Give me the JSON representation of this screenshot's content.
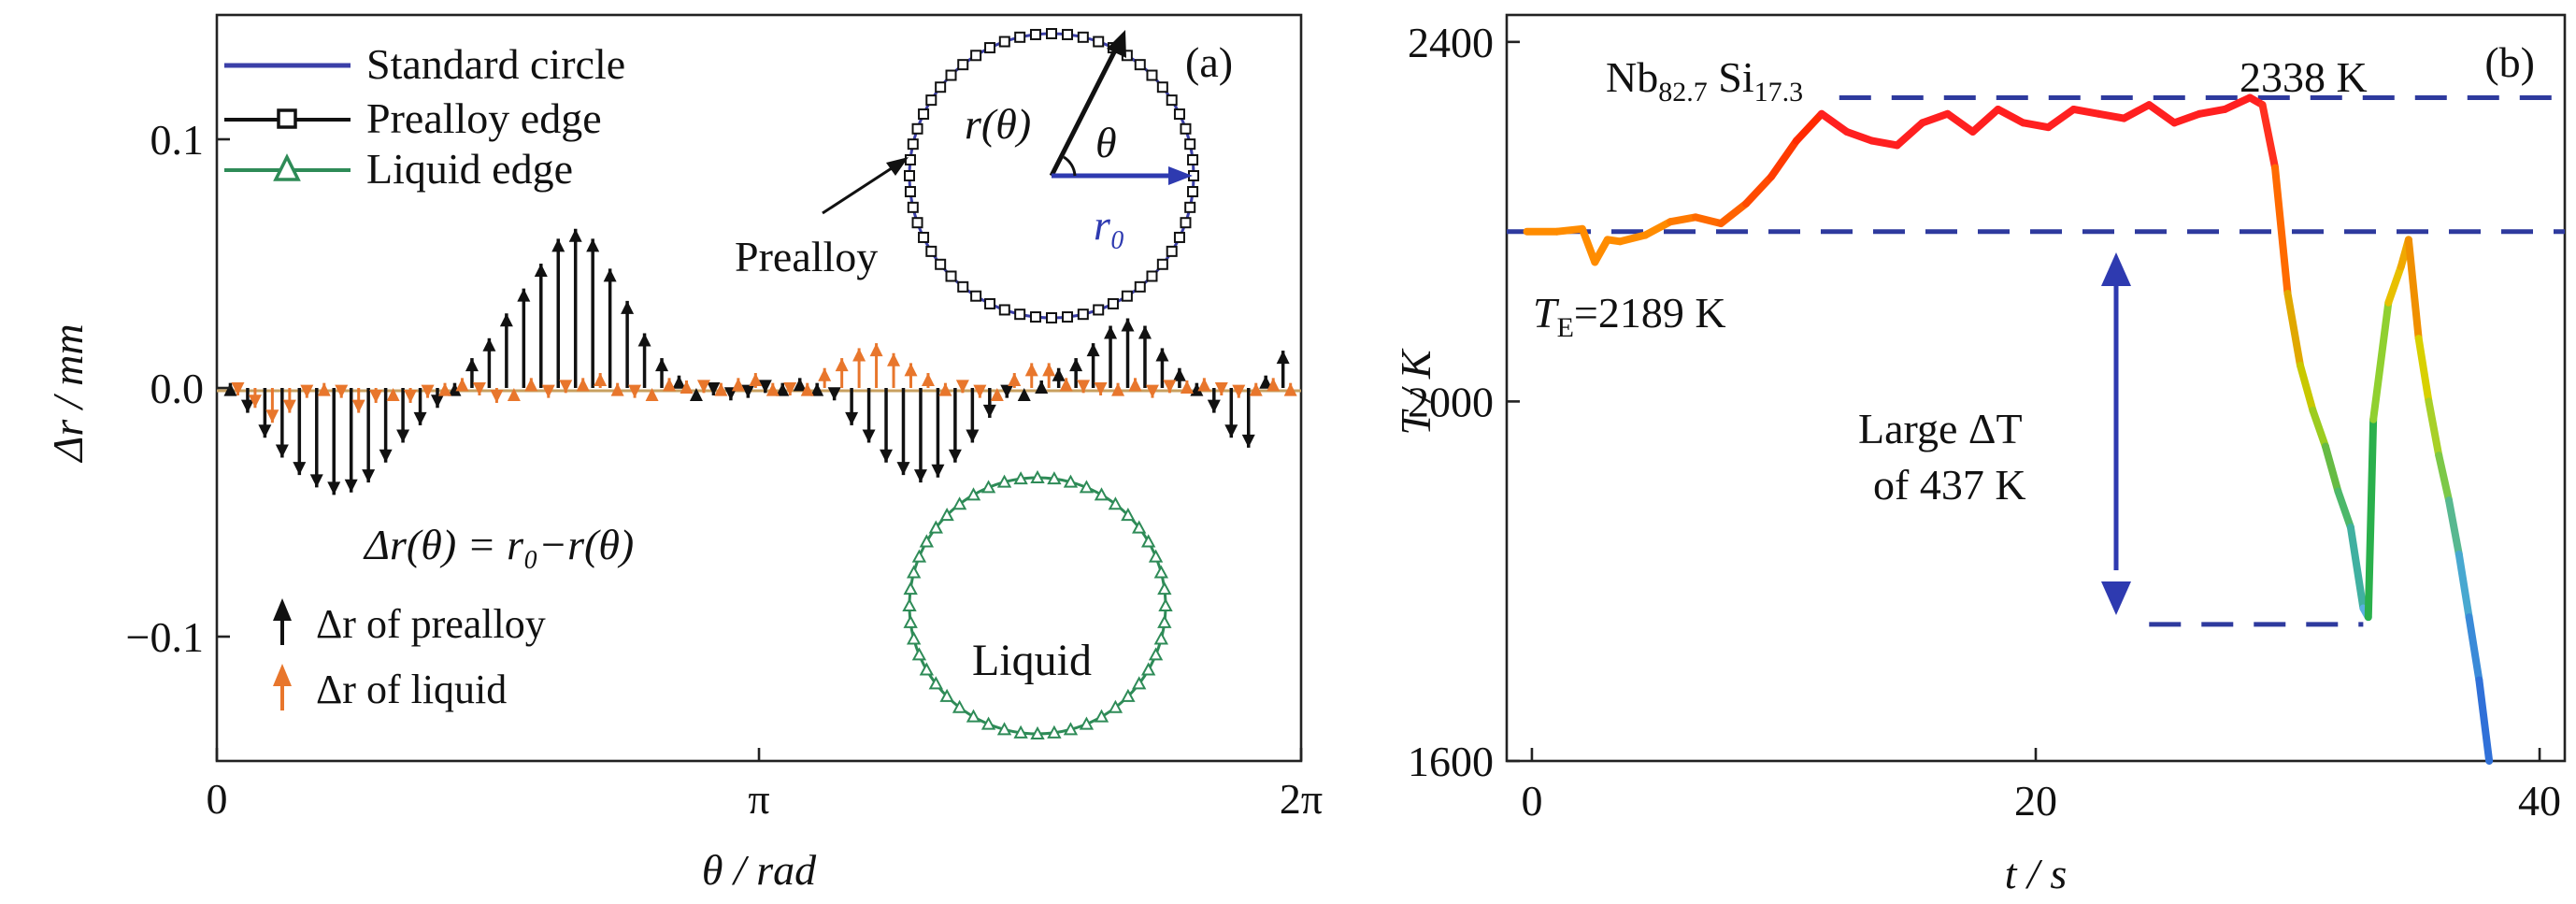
{
  "chart_data": [
    {
      "type": "line",
      "panel_label": "(a)",
      "xlabel": "θ / rad",
      "ylabel": "Δr / mm",
      "xlim": [
        0,
        6.283
      ],
      "ylim": [
        -0.15,
        0.15
      ],
      "xticks": [
        {
          "value": 0,
          "label": "0"
        },
        {
          "value": 3.1416,
          "label": "π"
        },
        {
          "value": 6.2832,
          "label": "2π"
        }
      ],
      "yticks": [
        {
          "value": 0.1,
          "label": "0.1"
        },
        {
          "value": 0.0,
          "label": "0.0"
        },
        {
          "value": -0.1,
          "label": "−0.1"
        }
      ],
      "legend_position": "top-left",
      "legend": [
        {
          "label": "Standard circle",
          "color": "#3b3fa8",
          "marker": "none"
        },
        {
          "label": "Prealloy edge",
          "color": "#111111",
          "marker": "square"
        },
        {
          "label": "Liquid edge",
          "color": "#2e8b57",
          "marker": "triangle"
        }
      ],
      "series": [
        {
          "name": "Δr of prealloy",
          "color": "#111111",
          "x": [
            0.1,
            0.2,
            0.3,
            0.4,
            0.5,
            0.6,
            0.7,
            0.8,
            0.9,
            1.0,
            1.1,
            1.2,
            1.3,
            1.4,
            1.5,
            1.6,
            1.7,
            1.8,
            1.9,
            2.0,
            2.1,
            2.2,
            2.3,
            2.4,
            2.5,
            2.6,
            2.7,
            2.8,
            2.9,
            3.0,
            3.1,
            3.2,
            3.3,
            3.4,
            3.5,
            3.6,
            3.7,
            3.8,
            3.9,
            4.0,
            4.1,
            4.2,
            4.3,
            4.4,
            4.5,
            4.6,
            4.7,
            4.8,
            4.9,
            5.0,
            5.1,
            5.2,
            5.3,
            5.4,
            5.5,
            5.6,
            5.7,
            5.8,
            5.9,
            6.0,
            6.1,
            6.2
          ],
          "y": [
            0.002,
            -0.01,
            -0.02,
            -0.028,
            -0.035,
            -0.04,
            -0.043,
            -0.042,
            -0.038,
            -0.03,
            -0.022,
            -0.015,
            -0.008,
            0.002,
            0.012,
            0.02,
            0.03,
            0.04,
            0.05,
            0.06,
            0.064,
            0.06,
            0.048,
            0.035,
            0.022,
            0.012,
            0.005,
            0.0,
            -0.003,
            -0.005,
            -0.004,
            -0.002,
            0.002,
            0.004,
            0.002,
            -0.005,
            -0.015,
            -0.022,
            -0.03,
            -0.035,
            -0.038,
            -0.036,
            -0.03,
            -0.022,
            -0.012,
            -0.004,
            0.0,
            0.003,
            0.008,
            0.012,
            0.018,
            0.025,
            0.028,
            0.025,
            0.016,
            0.008,
            0.002,
            -0.01,
            -0.02,
            -0.024,
            0.005,
            0.015
          ]
        },
        {
          "name": "Δr of liquid",
          "color": "#e8762c",
          "x": [
            0.1,
            0.2,
            0.3,
            0.4,
            0.5,
            0.6,
            0.7,
            0.8,
            0.9,
            1.0,
            1.1,
            1.2,
            1.3,
            1.4,
            1.5,
            1.6,
            1.7,
            1.8,
            1.9,
            2.0,
            2.1,
            2.2,
            2.3,
            2.4,
            2.5,
            2.6,
            2.7,
            2.8,
            2.9,
            3.0,
            3.1,
            3.2,
            3.3,
            3.4,
            3.5,
            3.6,
            3.7,
            3.8,
            3.9,
            4.0,
            4.1,
            4.2,
            4.3,
            4.4,
            4.5,
            4.6,
            4.7,
            4.8,
            4.9,
            5.0,
            5.1,
            5.2,
            5.3,
            5.4,
            5.5,
            5.6,
            5.7,
            5.8,
            5.9,
            6.0,
            6.1,
            6.2
          ],
          "y": [
            -0.003,
            -0.008,
            -0.014,
            -0.01,
            -0.004,
            0.002,
            -0.004,
            -0.01,
            -0.006,
            0.0,
            -0.006,
            -0.004,
            0.002,
            0.004,
            -0.003,
            -0.006,
            0.0,
            0.004,
            -0.004,
            -0.002,
            0.004,
            0.006,
            0.002,
            -0.004,
            0.0,
            0.004,
            0.003,
            -0.002,
            0.002,
            0.004,
            0.006,
            0.002,
            -0.003,
            0.002,
            0.008,
            0.012,
            0.016,
            0.018,
            0.014,
            0.01,
            0.006,
            0.002,
            -0.002,
            -0.004,
            0.0,
            0.006,
            0.01,
            0.01,
            0.004,
            -0.002,
            -0.003,
            0.002,
            0.004,
            -0.004,
            -0.002,
            0.003,
            0.004,
            -0.003,
            -0.004,
            0.002,
            0.004,
            0.002
          ]
        }
      ],
      "annotations": {
        "equation": "Δr(θ) = r₀−r(θ)",
        "prealloy_label": "Prealloy",
        "liquid_label": "Liquid",
        "inset_r_theta": "r(θ)",
        "inset_theta": "θ",
        "inset_r0": "r₀"
      }
    },
    {
      "type": "line",
      "panel_label": "(b)",
      "xlabel": "t / s",
      "ylabel": "T / K",
      "xlim": [
        -1,
        41
      ],
      "ylim": [
        1600,
        2430
      ],
      "xticks": [
        {
          "value": 0,
          "label": "0"
        },
        {
          "value": 20,
          "label": "20"
        },
        {
          "value": 40,
          "label": "40"
        }
      ],
      "yticks": [
        {
          "value": 1600,
          "label": "1600"
        },
        {
          "value": 2000,
          "label": "2000"
        },
        {
          "value": 2400,
          "label": "2400"
        }
      ],
      "series": [
        {
          "name": "",
          "x": [
            -0.2,
            1.0,
            2.0,
            2.5,
            3.0,
            3.5,
            4.5,
            5.5,
            6.5,
            7.5,
            8.5,
            9.5,
            10.5,
            11.5,
            12.5,
            13.5,
            14.5,
            15.5,
            16.5,
            17.5,
            18.5,
            19.5,
            20.5,
            21.5,
            22.5,
            23.5,
            24.5,
            25.5,
            26.5,
            27.5,
            28.5,
            29.0,
            29.5,
            30.0,
            30.5,
            31.0,
            31.5,
            32.0,
            32.5,
            33.0,
            33.2,
            33.4,
            34.0,
            34.5,
            34.8,
            35.2,
            35.6,
            36.0,
            36.4,
            36.8,
            37.2,
            37.6,
            38.0
          ],
          "y": [
            2189,
            2189,
            2192,
            2155,
            2180,
            2178,
            2185,
            2200,
            2205,
            2198,
            2220,
            2250,
            2290,
            2320,
            2300,
            2290,
            2285,
            2310,
            2320,
            2300,
            2325,
            2310,
            2305,
            2325,
            2320,
            2315,
            2330,
            2310,
            2320,
            2325,
            2338,
            2330,
            2260,
            2120,
            2040,
            1990,
            1950,
            1900,
            1860,
            1770,
            1760,
            1980,
            2110,
            2150,
            2180,
            2070,
            2000,
            1940,
            1890,
            1830,
            1760,
            1690,
            1600
          ],
          "colors": [
            "#ff8c00",
            "#ff8c00",
            "#ff8c00",
            "#ff8c00",
            "#ff8c00",
            "#ff8c00",
            "#ff8c00",
            "#ff7a00",
            "#ff6a00",
            "#ff6200",
            "#ff4a00",
            "#ff3a00",
            "#ff2a00",
            "#ff2020",
            "#ff2020",
            "#ff2020",
            "#ff2020",
            "#ff2020",
            "#ff2020",
            "#ff2020",
            "#ff2020",
            "#ff2020",
            "#ff2020",
            "#ff2020",
            "#ff2020",
            "#ff2020",
            "#ff2020",
            "#ff2020",
            "#ff2020",
            "#ff2020",
            "#ff2020",
            "#ff3020",
            "#ff6a00",
            "#e0a800",
            "#c8c800",
            "#9ccc20",
            "#66bb44",
            "#4cb86a",
            "#40b0a0",
            "#5ab0e0",
            "#2ab04c",
            "#90d030",
            "#e8c000",
            "#f0a800",
            "#f09000",
            "#d8d000",
            "#a8d028",
            "#7cc848",
            "#58b890",
            "#48a8d0",
            "#3a8ad8",
            "#3070d8",
            "#2050d0"
          ]
        }
      ],
      "reference_lines": [
        {
          "y": 2338,
          "label": "2338 K",
          "color": "#2e3a9e"
        },
        {
          "y": 2189,
          "label": "=2189 K",
          "color": "#2e3a9e"
        },
        {
          "y": 1752,
          "label": "",
          "color": "#2e3a9e"
        }
      ],
      "annotations": {
        "composition": "Nb82.7Si17.3",
        "te_symbol": "T",
        "te_subscript": "E",
        "undercooling_line1": "Large ΔT",
        "undercooling_line2": "of 437 K"
      }
    }
  ]
}
